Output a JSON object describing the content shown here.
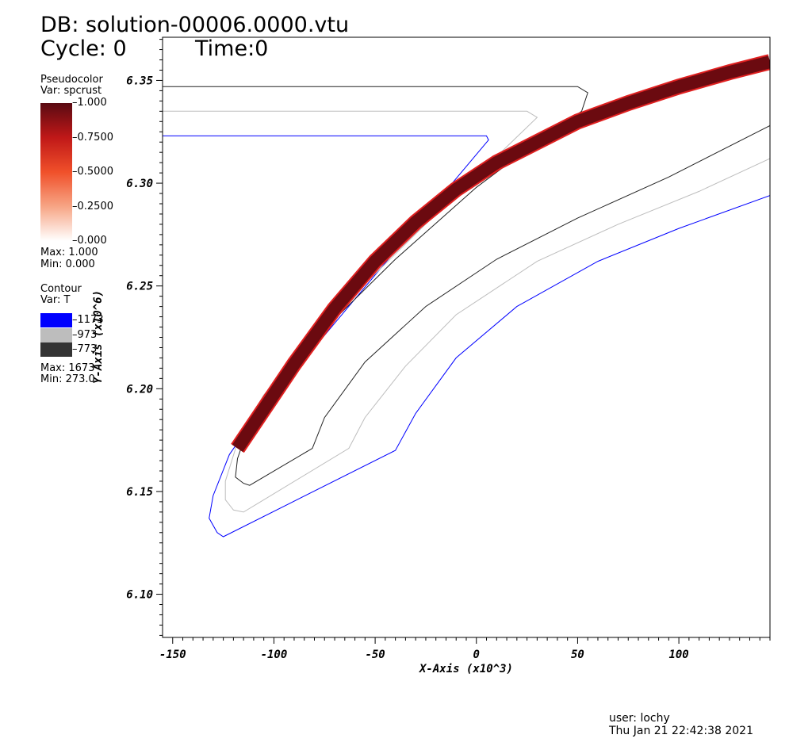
{
  "header": {
    "db_label": "DB: solution-00006.0000.vtu",
    "cycle_label": "Cycle: 0",
    "time_label": "Time:0"
  },
  "pseudocolor_legend": {
    "title": "Pseudocolor",
    "var_label": "Var: spcrust",
    "ticks": [
      "1.000",
      "0.7500",
      "0.5000",
      "0.2500",
      "0.000"
    ],
    "max_label": "Max:  1.000",
    "min_label": "Min:  0.000",
    "colors": [
      "#5a0a12",
      "#c01818",
      "#f0502a",
      "#f7a585",
      "#ffffff"
    ]
  },
  "contour_legend": {
    "title": "Contour",
    "var_label": "Var: T",
    "levels": [
      {
        "label": "1173",
        "color": "#0000ff"
      },
      {
        "label": "973",
        "color": "#bdbdbd"
      },
      {
        "label": "773",
        "color": "#333333"
      }
    ],
    "max_label": "Max:  1673",
    "min_label": "Min:  273.0"
  },
  "footer": {
    "user_label": "user: lochy",
    "date_label": "Thu Jan 21 22:42:38 2021"
  },
  "chart_data": {
    "type": "contour",
    "xlabel": "X-Axis (x10^3)",
    "ylabel": "Y-Axis (x10^6)",
    "xlim": [
      -155,
      145
    ],
    "ylim": [
      6.079,
      6.371
    ],
    "x_ticks": [
      -150,
      -100,
      -50,
      0,
      50,
      100
    ],
    "y_ticks": [
      6.1,
      6.15,
      6.2,
      6.25,
      6.3,
      6.35
    ],
    "x_tick_labels": [
      "-150",
      "-100",
      "-50",
      "0",
      "50",
      "100"
    ],
    "y_tick_labels": [
      "6.10",
      "6.15",
      "6.20",
      "6.25",
      "6.30",
      "6.35"
    ],
    "spcrust_band": {
      "value": 1.0,
      "color": "#6b0a10",
      "edge_color": "#e02020",
      "centerline": [
        [
          -118,
          6.171
        ],
        [
          -105,
          6.19
        ],
        [
          -90,
          6.212
        ],
        [
          -70,
          6.239
        ],
        [
          -50,
          6.262
        ],
        [
          -30,
          6.281
        ],
        [
          -10,
          6.297
        ],
        [
          10,
          6.31
        ],
        [
          30,
          6.32
        ],
        [
          50,
          6.33
        ],
        [
          75,
          6.339
        ],
        [
          100,
          6.347
        ],
        [
          125,
          6.354
        ],
        [
          145,
          6.359
        ]
      ]
    },
    "contours": [
      {
        "level": 1173,
        "color": "#0000ff",
        "points": [
          [
            -155,
            6.323
          ],
          [
            5,
            6.323
          ],
          [
            6,
            6.321
          ],
          [
            -35,
            6.273
          ],
          [
            -75,
            6.226
          ],
          [
            -105,
            6.192
          ],
          [
            -122,
            6.168
          ],
          [
            -130,
            6.148
          ],
          [
            -132,
            6.137
          ],
          [
            -128,
            6.13
          ],
          [
            -125,
            6.128
          ],
          [
            -40,
            6.17
          ],
          [
            -30,
            6.188
          ],
          [
            -10,
            6.215
          ],
          [
            20,
            6.24
          ],
          [
            60,
            6.262
          ],
          [
            100,
            6.278
          ],
          [
            145,
            6.294
          ]
        ]
      },
      {
        "level": 973,
        "color": "#bdbdbd",
        "points": [
          [
            -155,
            6.335
          ],
          [
            25,
            6.335
          ],
          [
            30,
            6.332
          ],
          [
            10,
            6.313
          ],
          [
            -20,
            6.285
          ],
          [
            -55,
            6.251
          ],
          [
            -85,
            6.22
          ],
          [
            -105,
            6.197
          ],
          [
            -117,
            6.177
          ],
          [
            -124,
            6.155
          ],
          [
            -124,
            6.146
          ],
          [
            -120,
            6.141
          ],
          [
            -115,
            6.14
          ],
          [
            -63,
            6.171
          ],
          [
            -55,
            6.186
          ],
          [
            -35,
            6.211
          ],
          [
            -10,
            6.236
          ],
          [
            30,
            6.262
          ],
          [
            70,
            6.28
          ],
          [
            110,
            6.296
          ],
          [
            145,
            6.312
          ]
        ]
      },
      {
        "level": 773,
        "color": "#222222",
        "points": [
          [
            -155,
            6.347
          ],
          [
            50,
            6.347
          ],
          [
            55,
            6.344
          ],
          [
            52,
            6.335
          ],
          [
            30,
            6.32
          ],
          [
            0,
            6.298
          ],
          [
            -40,
            6.263
          ],
          [
            -75,
            6.229
          ],
          [
            -98,
            6.203
          ],
          [
            -112,
            6.183
          ],
          [
            -118,
            6.166
          ],
          [
            -119,
            6.157
          ],
          [
            -115,
            6.154
          ],
          [
            -112,
            6.153
          ],
          [
            -81,
            6.171
          ],
          [
            -75,
            6.186
          ],
          [
            -55,
            6.213
          ],
          [
            -25,
            6.24
          ],
          [
            10,
            6.263
          ],
          [
            50,
            6.283
          ],
          [
            95,
            6.303
          ],
          [
            145,
            6.328
          ]
        ]
      }
    ]
  }
}
